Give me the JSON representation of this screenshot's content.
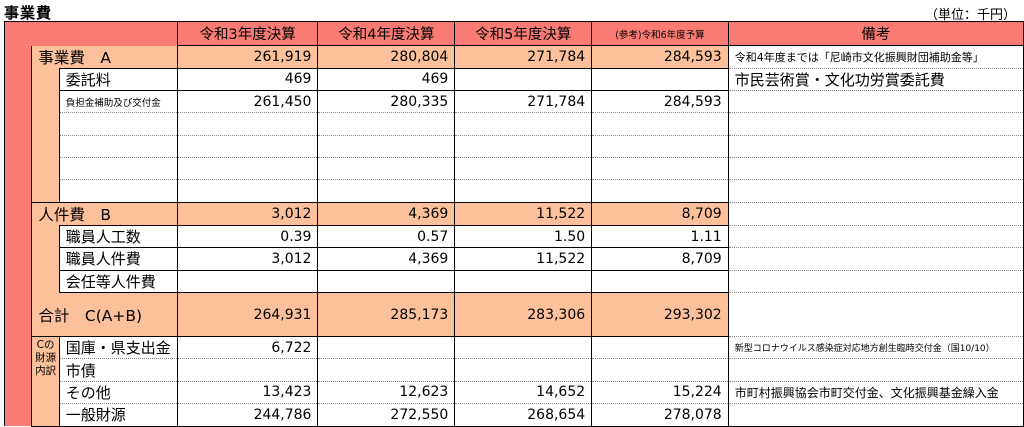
{
  "title": "事業費",
  "unit": "（単位：千円）",
  "headers": [
    "令和3年度決算",
    "令和4年度決算",
    "令和5年度決算",
    "(参考)令和6年度予算",
    "備考"
  ],
  "rows": {
    "jigyohi": {
      "label": "事業費　A",
      "values": [
        "261,919",
        "280,804",
        "271,784",
        "284,593"
      ],
      "remark": "令和4年度までは「尼崎市文化振興財団補助金等」"
    },
    "itakuryo": {
      "label": "委託料",
      "values": [
        "469",
        "469",
        "",
        ""
      ],
      "remark": "市民芸術賞・文化功労賞委託費"
    },
    "futankin": {
      "label": "負担金補助及び交付金",
      "values": [
        "261,450",
        "280,335",
        "271,784",
        "284,593"
      ],
      "remark": ""
    },
    "jinkenhi": {
      "label": "人件費　B",
      "values": [
        "3,012",
        "4,369",
        "11,522",
        "8,709"
      ],
      "remark": ""
    },
    "shokuin_ninku": {
      "label": "職員人工数",
      "values": [
        "0.39",
        "0.57",
        "1.50",
        "1.11"
      ],
      "remark": ""
    },
    "shokuin_jinkenhi": {
      "label": "職員人件費",
      "values": [
        "3,012",
        "4,369",
        "11,522",
        "8,709"
      ],
      "remark": ""
    },
    "kainin": {
      "label": "会任等人件費",
      "values": [
        "",
        "",
        "",
        ""
      ],
      "remark": ""
    },
    "goukei": {
      "label": "合計　C(A+B)",
      "values": [
        "264,931",
        "285,173",
        "283,306",
        "293,302"
      ],
      "remark": ""
    },
    "kokko": {
      "label": "国庫・県支出金",
      "values": [
        "6,722",
        "",
        "",
        ""
      ],
      "remark": "新型コロナウイルス感染症対応地方創生臨時交付金（国10/10）"
    },
    "shisai": {
      "label": "市債",
      "values": [
        "",
        "",
        "",
        ""
      ],
      "remark": ""
    },
    "sonota": {
      "label": "その他",
      "values": [
        "13,423",
        "12,623",
        "14,652",
        "15,224"
      ],
      "remark": "市町村振興協会市町交付金、文化振興基金繰入金"
    },
    "ippan": {
      "label": "一般財源",
      "values": [
        "244,786",
        "272,550",
        "268,654",
        "278,078"
      ],
      "remark": ""
    }
  },
  "zaigen_label": "Cの財源内訳"
}
